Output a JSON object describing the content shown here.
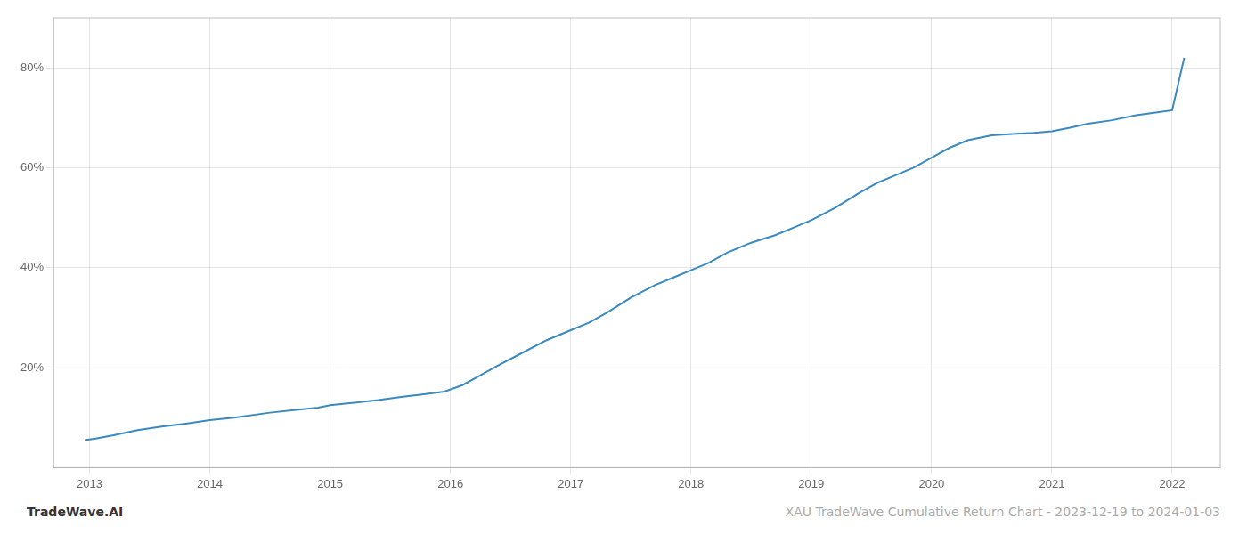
{
  "chart_data": {
    "type": "line",
    "x": [
      2012.96,
      2013.05,
      2013.2,
      2013.4,
      2013.6,
      2013.8,
      2014.0,
      2014.2,
      2014.5,
      2014.7,
      2014.9,
      2015.0,
      2015.2,
      2015.4,
      2015.55,
      2015.65,
      2015.75,
      2015.85,
      2015.95,
      2016.1,
      2016.25,
      2016.4,
      2016.6,
      2016.8,
      2017.0,
      2017.15,
      2017.3,
      2017.5,
      2017.7,
      2017.85,
      2018.0,
      2018.15,
      2018.3,
      2018.5,
      2018.7,
      2018.85,
      2019.0,
      2019.2,
      2019.4,
      2019.55,
      2019.7,
      2019.85,
      2020.0,
      2020.15,
      2020.3,
      2020.5,
      2020.7,
      2020.85,
      2021.0,
      2021.15,
      2021.3,
      2021.5,
      2021.7,
      2021.85,
      2022.0,
      2022.1
    ],
    "values": [
      5.5,
      5.8,
      6.5,
      7.5,
      8.2,
      8.8,
      9.5,
      10.0,
      11.0,
      11.5,
      12.0,
      12.5,
      13.0,
      13.5,
      14.0,
      14.3,
      14.6,
      14.9,
      15.2,
      16.5,
      18.5,
      20.5,
      23.0,
      25.5,
      27.5,
      29.0,
      31.0,
      34.0,
      36.5,
      38.0,
      39.5,
      41.0,
      43.0,
      45.0,
      46.5,
      48.0,
      49.5,
      52.0,
      55.0,
      57.0,
      58.5,
      60.0,
      62.0,
      64.0,
      65.5,
      66.5,
      66.8,
      67.0,
      67.3,
      68.0,
      68.8,
      69.5,
      70.5,
      71.0,
      71.5,
      82.0
    ],
    "color": "#3a8abf",
    "xlim": [
      2012.7,
      2022.4
    ],
    "xticks": [
      2013,
      2014,
      2015,
      2016,
      2017,
      2018,
      2019,
      2020,
      2021,
      2022
    ],
    "ylim": [
      0,
      90
    ],
    "yticks": [
      {
        "value": 20,
        "label": "20%"
      },
      {
        "value": 40,
        "label": "40%"
      },
      {
        "value": 60,
        "label": "60%"
      },
      {
        "value": 80,
        "label": "80%"
      }
    ],
    "grid": true,
    "annotations": [
      {
        "text": "TradeWave.AI",
        "color": "#333333"
      },
      {
        "text": "XAU TradeWave Cumulative Return Chart - 2023-12-19 to 2024-01-03",
        "color": "#aaaaaa"
      }
    ]
  }
}
